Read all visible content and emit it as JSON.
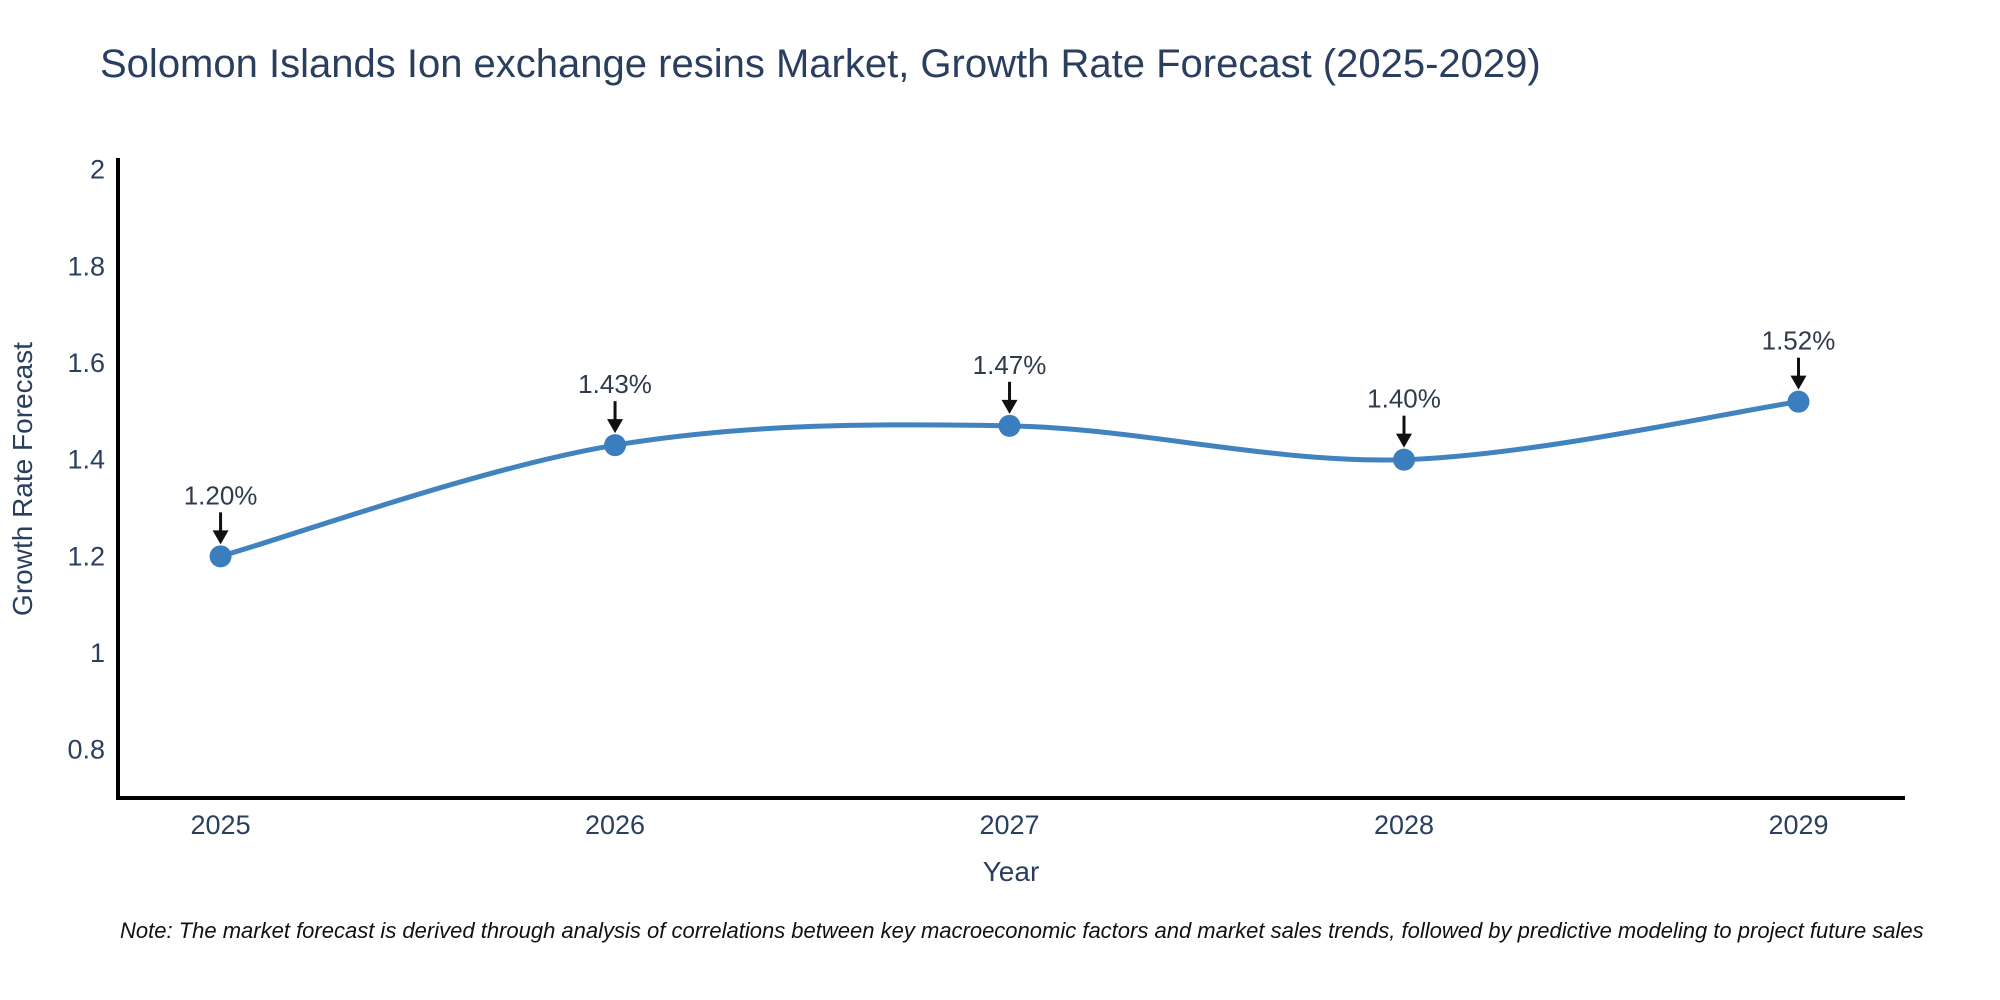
{
  "chart_data": {
    "type": "line",
    "title": "Solomon Islands Ion exchange resins Market, Growth Rate Forecast (2025-2029)",
    "x": [
      2025,
      2026,
      2027,
      2028,
      2029
    ],
    "y": [
      1.2,
      1.43,
      1.47,
      1.4,
      1.52
    ],
    "point_labels": [
      "1.20%",
      "1.43%",
      "1.47%",
      "1.40%",
      "1.52%"
    ],
    "x_tick_labels": [
      "2025",
      "2026",
      "2027",
      "2028",
      "2029"
    ],
    "y_tick_labels": [
      "0.8",
      "1",
      "1.2",
      "1.4",
      "1.6",
      "1.8",
      "2"
    ],
    "y_tick_values": [
      0.8,
      1,
      1.2,
      1.4,
      1.6,
      1.8,
      2
    ],
    "xlabel": "Year",
    "ylabel": "Growth Rate Forecast",
    "xlim": [
      2024.74,
      2029.27
    ],
    "ylim": [
      0.7,
      2.02
    ],
    "grid": false,
    "legend": false,
    "line_shape": "spline",
    "line_color": "#4083bf",
    "marker_color": "#3a7ebf",
    "arrow_color": "#111111",
    "text_color": "#2a3f5f",
    "note": "Note: The market forecast is derived through analysis of correlations between key macroeconomic factors and market sales trends, followed by predictive modeling to project future sales"
  }
}
